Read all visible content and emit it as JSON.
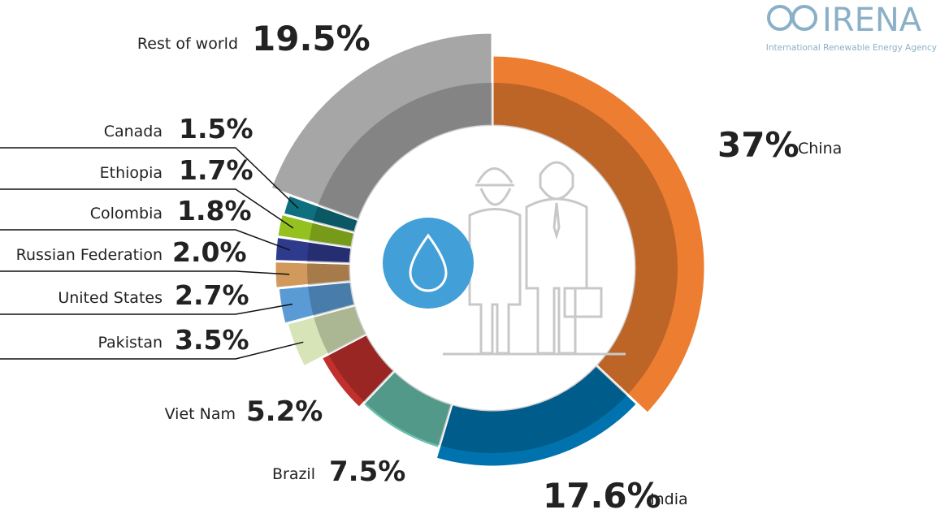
{
  "chart_data": {
    "type": "donut",
    "categories": [
      "China",
      "India",
      "Brazil",
      "Viet Nam",
      "Pakistan",
      "United States",
      "Russian Federation",
      "Colombia",
      "Ethiopia",
      "Canada",
      "Rest of world"
    ],
    "values": [
      37,
      17.6,
      7.5,
      5.2,
      3.5,
      2.7,
      2.0,
      1.8,
      1.7,
      1.5,
      19.5
    ],
    "value_labels": [
      "37%",
      "17.6%",
      "7.5%",
      "5.2%",
      "3.5%",
      "2.7%",
      "2.0%",
      "1.8%",
      "1.7%",
      "1.5%",
      "19.5%"
    ],
    "colors": [
      "#ed7d31",
      "#0073ae",
      "#67c0ad",
      "#c0302c",
      "#d6e4b7",
      "#5b9bd5",
      "#d19a5c",
      "#2e3a8c",
      "#95c11f",
      "#0e6f7e",
      "#a6a6a6"
    ]
  },
  "logo": {
    "name": "IRENA",
    "tagline": "International Renewable Energy Agency"
  }
}
